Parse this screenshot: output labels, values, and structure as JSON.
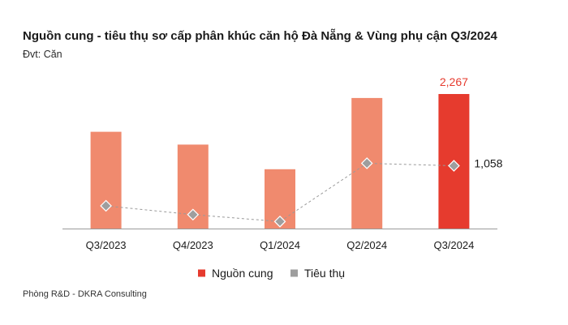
{
  "header": {
    "title": "Nguồn cung - tiêu thụ sơ cấp phân khúc căn hộ Đà Nẵng & Vùng phụ cận Q3/2024",
    "unit": "Đvt: Căn"
  },
  "footer": {
    "source": "Phòng R&D - DKRA Consulting"
  },
  "chart_data": {
    "type": "bar",
    "title": "Nguồn cung - tiêu thụ sơ cấp phân khúc căn hộ Đà Nẵng & Vùng phụ cận Q3/2024",
    "unit": "Đvt: Căn",
    "categories": [
      "Q3/2023",
      "Q4/2023",
      "Q1/2024",
      "Q2/2024",
      "Q3/2024"
    ],
    "series": [
      {
        "name": "Nguồn cung",
        "type": "bar",
        "values": [
          1630,
          1415,
          1000,
          2200,
          2267
        ]
      },
      {
        "name": "Tiêu thụ",
        "type": "line",
        "values": [
          383,
          235,
          118,
          1100,
          1058
        ]
      }
    ],
    "data_labels": {
      "Nguồn cung": {
        "index": 4,
        "text": "2,267"
      },
      "Tiêu thụ": {
        "index": 4,
        "text": "1,058"
      }
    },
    "ylim": [
      0,
      2267
    ],
    "grid": false,
    "legend": "bottom",
    "colors": {
      "bar": "#f08a6e",
      "bar_highlight": "#e63b2e",
      "line": "#9a9a9a",
      "marker": "#9e9e9e",
      "axis": "#9a9a9a",
      "label_highlight": "#e63b2e"
    }
  }
}
